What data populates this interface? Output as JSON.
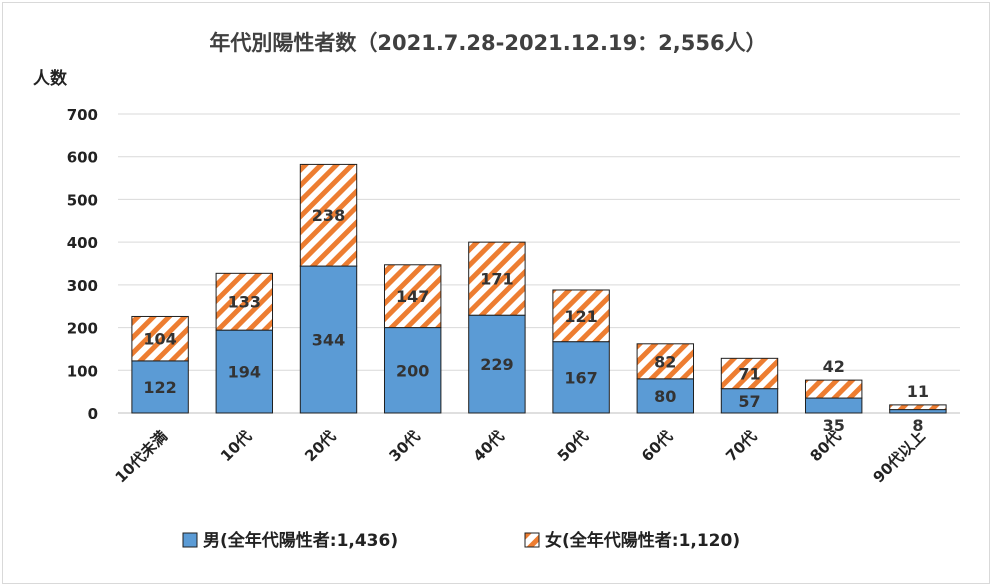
{
  "chart_data": {
    "type": "bar",
    "stacked": true,
    "title": "年代別陽性者数（2021.7.28-2021.12.19：2,556人）",
    "ylabel": "人数",
    "xlabel": "",
    "ylim": [
      0,
      700
    ],
    "yticks": [
      0,
      100,
      200,
      300,
      400,
      500,
      600,
      700
    ],
    "grid": true,
    "legend_position": "bottom",
    "categories": [
      "10代未満",
      "10代",
      "20代",
      "30代",
      "40代",
      "50代",
      "60代",
      "70代",
      "80代",
      "90代以上"
    ],
    "series": [
      {
        "name": "男(全年代陽性者:1,436)",
        "color": "#5b9bd5",
        "pattern": "solid",
        "values": [
          122,
          194,
          344,
          200,
          229,
          167,
          80,
          57,
          35,
          8
        ]
      },
      {
        "name": "女(全年代陽性者:1,120)",
        "color": "#ed7d31",
        "pattern": "diagonal-stripes",
        "values": [
          104,
          133,
          238,
          147,
          171,
          121,
          82,
          71,
          42,
          11
        ]
      }
    ]
  }
}
